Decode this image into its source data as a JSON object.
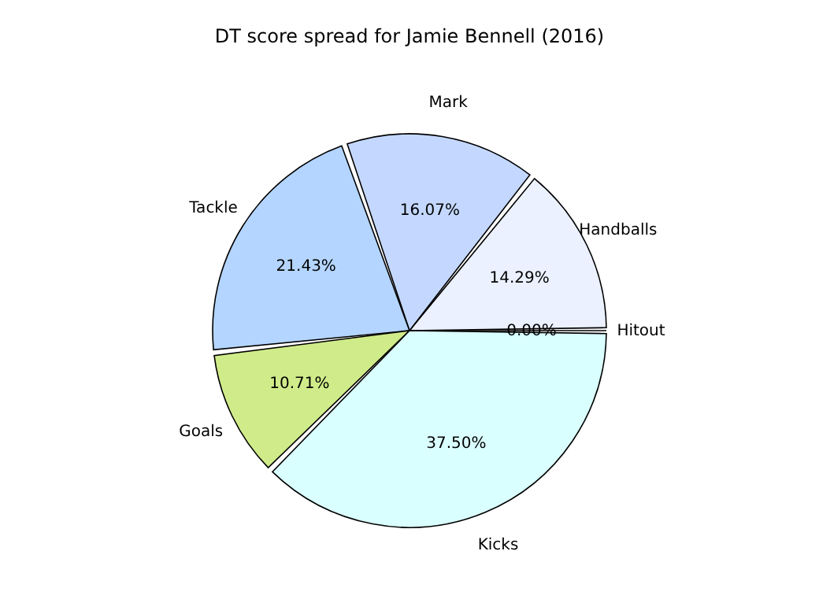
{
  "chart_data": {
    "type": "pie",
    "title": "DT score spread for Jamie Bennell (2016)",
    "categories": [
      "Handballs",
      "Mark",
      "Tackle",
      "Goals",
      "Kicks",
      "Hitout"
    ],
    "values": [
      14.29,
      16.07,
      21.43,
      10.71,
      37.5,
      0
    ],
    "value_labels": [
      "14.29%",
      "16.07%",
      "21.43%",
      "10.71%",
      "37.50%",
      "0.00%"
    ],
    "colors": [
      "#ebf1ff",
      "#c4d8ff",
      "#b4d5ff",
      "#d0ec8a",
      "#daffff",
      "#ffffff"
    ],
    "legend": false
  }
}
